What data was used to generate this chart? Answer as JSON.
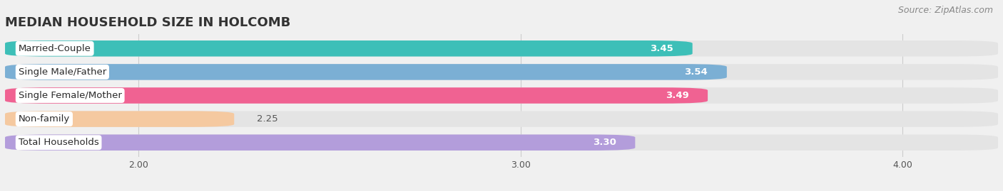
{
  "title": "MEDIAN HOUSEHOLD SIZE IN HOLCOMB",
  "source": "Source: ZipAtlas.com",
  "categories": [
    "Married-Couple",
    "Single Male/Father",
    "Single Female/Mother",
    "Non-family",
    "Total Households"
  ],
  "values": [
    3.45,
    3.54,
    3.49,
    2.25,
    3.3
  ],
  "bar_colors": [
    "#3dbfb8",
    "#7bafd4",
    "#f06292",
    "#f5c9a0",
    "#b39ddb"
  ],
  "label_colors": [
    "#ffffff",
    "#ffffff",
    "#ffffff",
    "#8a6500",
    "#ffffff"
  ],
  "xlim_data": [
    1.65,
    4.25
  ],
  "xmin": 1.65,
  "xmax": 4.25,
  "xticks": [
    2.0,
    3.0,
    4.0
  ],
  "background_color": "#f0f0f0",
  "bar_bg_color": "#e4e4e4",
  "title_fontsize": 13,
  "label_fontsize": 9.5,
  "value_fontsize": 9.5,
  "source_fontsize": 9
}
